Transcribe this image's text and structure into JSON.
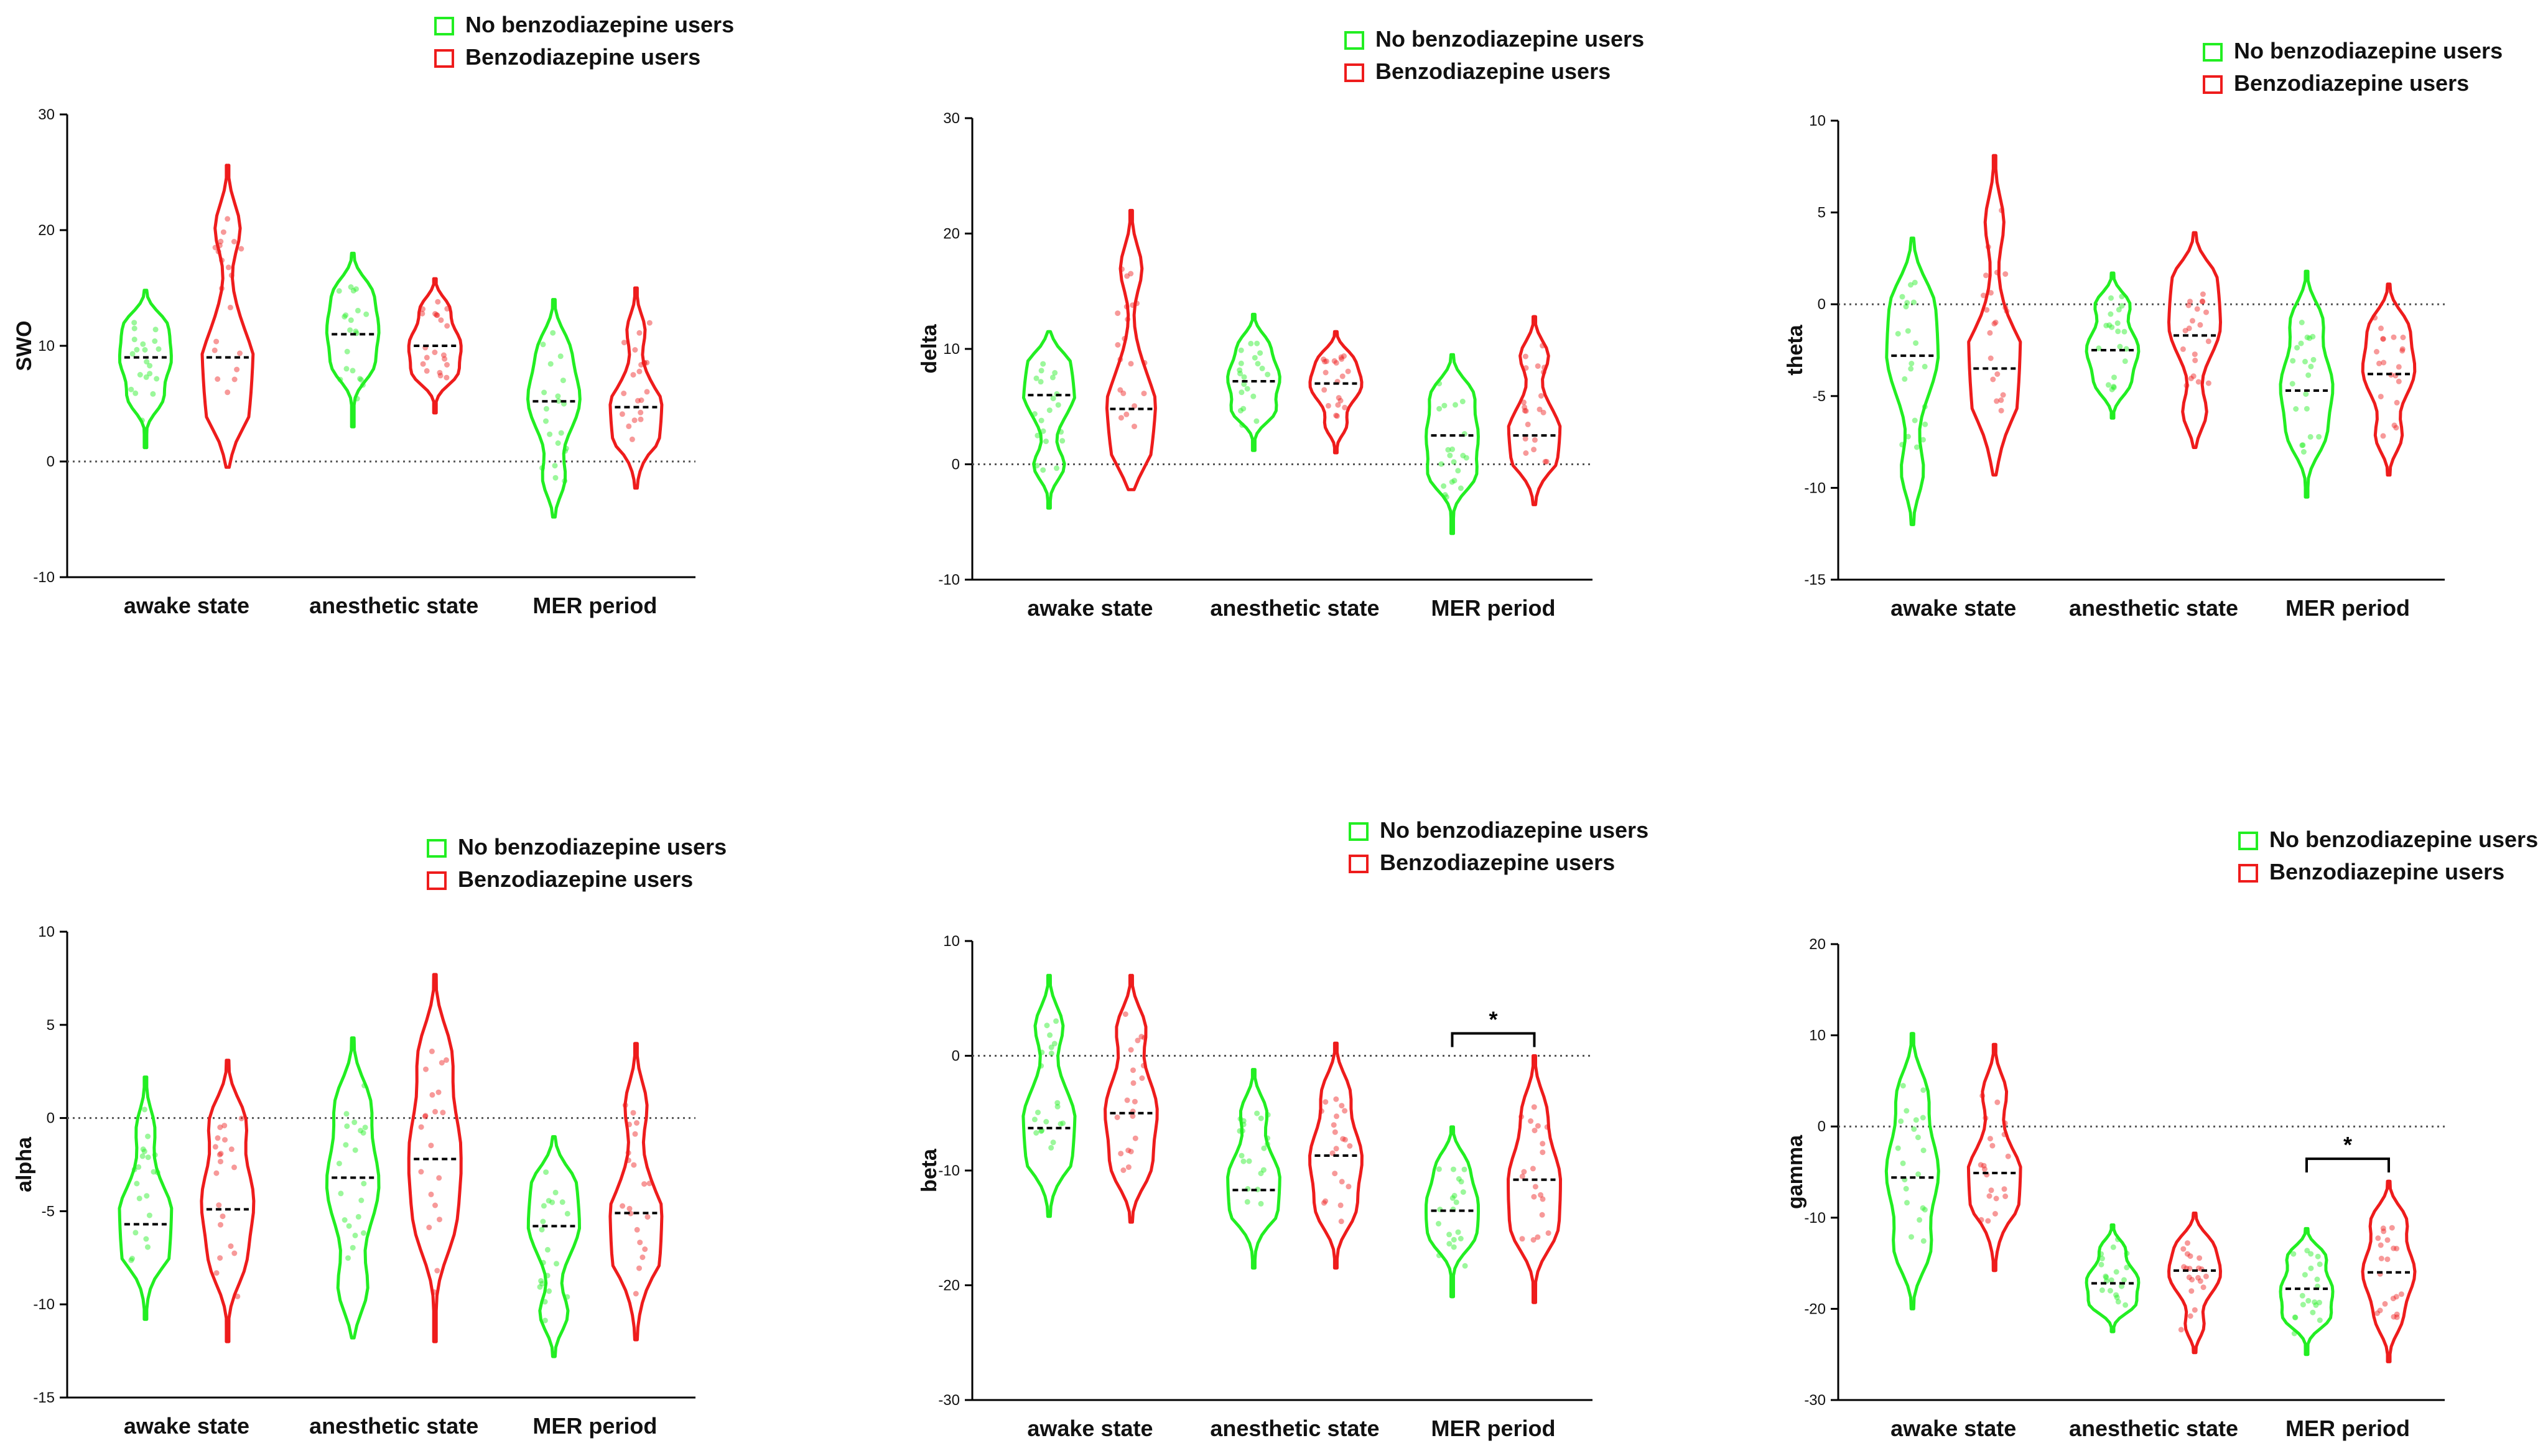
{
  "legend": {
    "no_benzo_label": "No benzodiazepine users",
    "benzo_label": "Benzodiazepine users"
  },
  "colors": {
    "no_benzo": "#22ee22",
    "benzo": "#ee1c1c",
    "axis": "#000000"
  },
  "chart_data": [
    {
      "type": "violin",
      "ylabel": "SWO",
      "ylim": [
        -10,
        30
      ],
      "yticks": [
        "30",
        "20",
        "10",
        "0",
        "-10"
      ],
      "categories": [
        "awake state",
        "anesthetic state",
        "MER period"
      ],
      "series": [
        {
          "name": "No benzodiazepine users",
          "min": [
            1.2,
            3,
            -4.8
          ],
          "max": [
            14.8,
            18,
            14
          ],
          "median": [
            9,
            11,
            5.2
          ],
          "mode": [
            9,
            11.5,
            5.5
          ]
        },
        {
          "name": "Benzodiazepine users",
          "min": [
            -0.5,
            4.2,
            -2.3
          ],
          "max": [
            25.6,
            15.8,
            15
          ],
          "median": [
            9,
            10,
            4.7
          ],
          "mode": [
            7.5,
            10,
            4
          ]
        }
      ],
      "significance": []
    },
    {
      "type": "violin",
      "ylabel": "delta",
      "ylim": [
        -10,
        30
      ],
      "yticks": [
        "30",
        "20",
        "10",
        "0",
        "-10"
      ],
      "categories": [
        "awake state",
        "anesthetic state",
        "MER period"
      ],
      "series": [
        {
          "name": "No benzodiazepine users",
          "min": [
            -3.8,
            1.2,
            -6
          ],
          "max": [
            11.5,
            13,
            9.5
          ],
          "median": [
            6,
            7.2,
            2.5
          ],
          "mode": [
            6.5,
            7.5,
            2.5
          ]
        },
        {
          "name": "Benzodiazepine users",
          "min": [
            -2.2,
            1,
            -3.5
          ],
          "max": [
            22,
            11.5,
            12.8
          ],
          "median": [
            4.8,
            7,
            2.5
          ],
          "mode": [
            4,
            7,
            2.5
          ]
        }
      ],
      "significance": []
    },
    {
      "type": "violin",
      "ylabel": "theta",
      "ylim": [
        -15,
        10
      ],
      "yticks": [
        "10",
        "5",
        "0",
        "-5",
        "-10",
        "-15"
      ],
      "categories": [
        "awake state",
        "anesthetic state",
        "MER period"
      ],
      "series": [
        {
          "name": "No benzodiazepine users",
          "min": [
            -12,
            -6.2,
            -10.5
          ],
          "max": [
            3.6,
            1.7,
            1.8
          ],
          "median": [
            -2.8,
            -2.5,
            -4.7
          ],
          "mode": [
            -2.5,
            -2.5,
            -4.5
          ]
        },
        {
          "name": "Benzodiazepine users",
          "min": [
            -9.3,
            -7.8,
            -9.3
          ],
          "max": [
            8.1,
            3.9,
            1.1
          ],
          "median": [
            -3.5,
            -1.7,
            -3.8
          ],
          "mode": [
            -4,
            -1,
            -3.5
          ]
        }
      ],
      "significance": []
    },
    {
      "type": "violin",
      "ylabel": "alpha",
      "ylim": [
        -15,
        10
      ],
      "yticks": [
        "10",
        "5",
        "0",
        "-5",
        "-10",
        "-15"
      ],
      "categories": [
        "awake state",
        "anesthetic state",
        "MER period"
      ],
      "series": [
        {
          "name": "No benzodiazepine users",
          "min": [
            -10.8,
            -11.8,
            -12.8
          ],
          "max": [
            2.2,
            4.3,
            -1
          ],
          "median": [
            -5.7,
            -3.2,
            -5.8
          ],
          "mode": [
            -5.5,
            -3.5,
            -5.5
          ]
        },
        {
          "name": "Benzodiazepine users",
          "min": [
            -12,
            -12,
            -11.9
          ],
          "max": [
            3.1,
            7.7,
            4
          ],
          "median": [
            -4.9,
            -2.2,
            -5.1
          ],
          "mode": [
            -4.5,
            -2,
            -6
          ]
        }
      ],
      "significance": []
    },
    {
      "type": "violin",
      "ylabel": "beta",
      "ylim": [
        -30,
        10
      ],
      "yticks": [
        "10",
        "0",
        "-10",
        "-20",
        "-30"
      ],
      "categories": [
        "awake state",
        "anesthetic state",
        "MER period"
      ],
      "series": [
        {
          "name": "No benzodiazepine users",
          "min": [
            -14,
            -18.5,
            -21
          ],
          "max": [
            7,
            -1.2,
            -6.2
          ],
          "median": [
            -6.3,
            -11.7,
            -13.5
          ],
          "mode": [
            -6,
            -11,
            -13
          ]
        },
        {
          "name": "Benzodiazepine users",
          "min": [
            -14.5,
            -18.5,
            -21.5
          ],
          "max": [
            7,
            1.1,
            0
          ],
          "median": [
            -5,
            -8.7,
            -10.8
          ],
          "mode": [
            -5,
            -9,
            -11
          ]
        }
      ],
      "significance": [
        {
          "category_index": 2,
          "label": "*"
        }
      ]
    },
    {
      "type": "violin",
      "ylabel": "gamma",
      "ylim": [
        -30,
        20
      ],
      "yticks": [
        "20",
        "10",
        "0",
        "-10",
        "-20",
        "-30"
      ],
      "categories": [
        "awake state",
        "anesthetic state",
        "MER period"
      ],
      "series": [
        {
          "name": "No benzodiazepine users",
          "min": [
            -20,
            -22.5,
            -25
          ],
          "max": [
            10.2,
            -10.8,
            -11.2
          ],
          "median": [
            -5.6,
            -17.2,
            -17.8
          ],
          "mode": [
            -5,
            -17,
            -18
          ]
        },
        {
          "name": "Benzodiazepine users",
          "min": [
            -15.8,
            -24.8,
            -25.8
          ],
          "max": [
            9,
            -9.5,
            -6
          ],
          "median": [
            -5.1,
            -15.8,
            -16
          ],
          "mode": [
            -6,
            -16,
            -16
          ]
        }
      ],
      "significance": [
        {
          "category_index": 2,
          "label": "*"
        }
      ]
    }
  ]
}
